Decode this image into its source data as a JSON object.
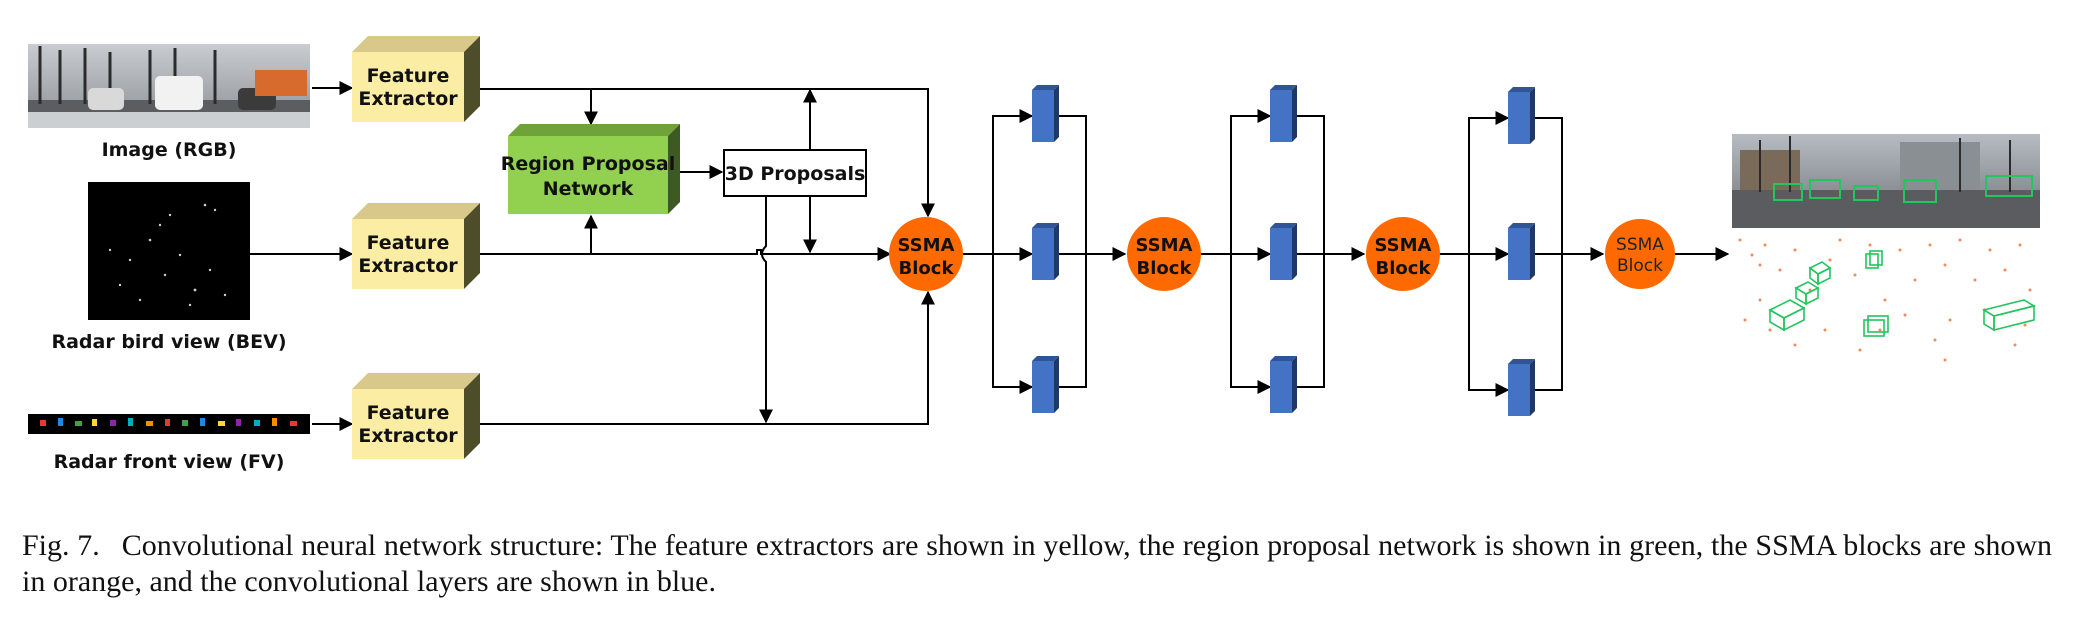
{
  "inputs": {
    "rgb_label": "Image (RGB)",
    "bev_label": "Radar bird view (BEV)",
    "fv_label": "Radar front view (FV)"
  },
  "feature_extractor": {
    "line1": "Feature",
    "line2": "Extractor"
  },
  "rpn": {
    "line1": "Region Proposal",
    "line2": "Network"
  },
  "proposals": {
    "label": "3D Proposals"
  },
  "ssma": {
    "line1": "SSMA",
    "line2": "Block"
  },
  "colors": {
    "feature_extractor": "#fbeea4",
    "rpn": "#92d050",
    "ssma": "#ff6a00",
    "conv_layer": "#4472c4"
  },
  "caption": {
    "fig_num": "Fig. 7.",
    "text": "Convolutional neural network structure: The feature extractors are shown in yellow, the region proposal network is shown in green, the SSMA blocks are shown in orange, and the convolutional layers are shown in blue."
  }
}
